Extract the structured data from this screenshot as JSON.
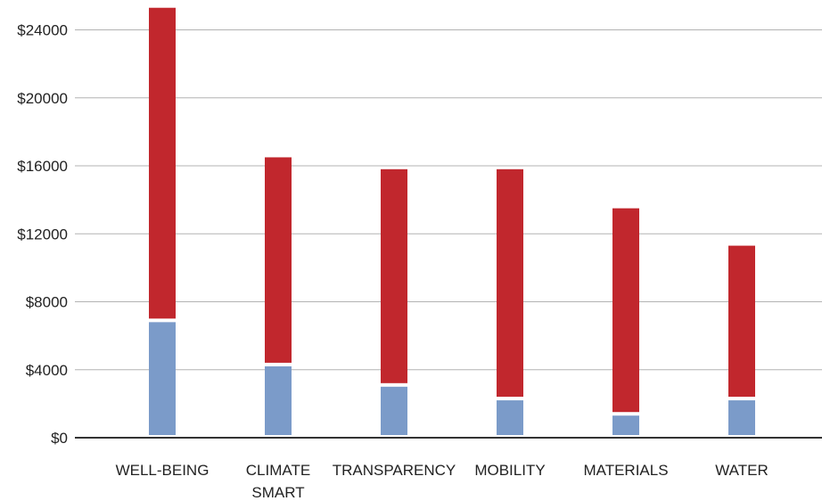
{
  "chart_data": {
    "type": "bar",
    "stacked": true,
    "categories": [
      [
        "WELL-BEING"
      ],
      [
        "CLIMATE",
        "SMART"
      ],
      [
        "TRANSPARENCY"
      ],
      [
        "MOBILITY"
      ],
      [
        "MATERIALS"
      ],
      [
        "WATER"
      ]
    ],
    "category_labels": [
      "WELL-BEING",
      "CLIMATE SMART",
      "TRANSPARENCY",
      "MOBILITY",
      "MATERIALS",
      "WATER"
    ],
    "series": [
      {
        "color": "#7b9bc9",
        "values": [
          6800,
          4200,
          3000,
          2200,
          1300,
          2200
        ]
      },
      {
        "color": "#c1272d",
        "values": [
          18500,
          12300,
          12800,
          13600,
          12200,
          9100
        ]
      }
    ],
    "y_ticks": [
      "$0",
      "$4000",
      "$8000",
      "$12000",
      "$16000",
      "$20000",
      "$24000"
    ],
    "ylim": [
      0,
      25600
    ],
    "grid": true,
    "legend": "none"
  }
}
